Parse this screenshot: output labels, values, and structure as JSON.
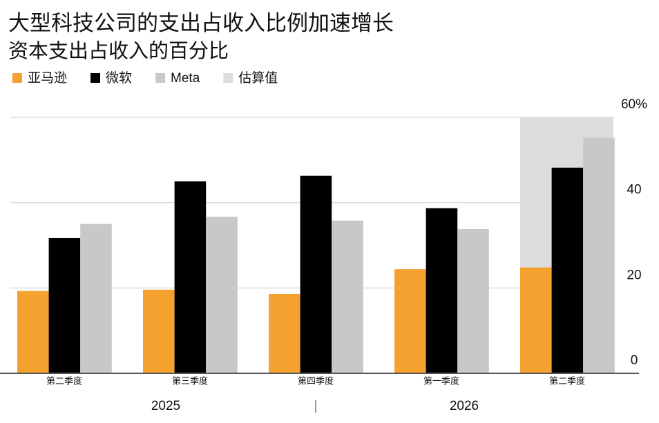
{
  "chart_data": {
    "type": "bar",
    "title": "大型科技公司的支出占收入比例加速增长",
    "subtitle": "资本支出占收入的百分比",
    "categories": [
      "第二季度",
      "第三季度",
      "第四季度",
      "第一季度",
      "第二季度"
    ],
    "x_groups": [
      "2025",
      "2026"
    ],
    "series": [
      {
        "name": "亚马逊",
        "color": "#f5a12f",
        "values": [
          19.3,
          19.6,
          18.6,
          24.4,
          24.8
        ]
      },
      {
        "name": "微软",
        "color": "#000000",
        "values": [
          31.7,
          45,
          46.3,
          38.7,
          48.2
        ]
      },
      {
        "name": "Meta",
        "color": "#c8c8c8",
        "values": [
          35,
          36.7,
          35.8,
          33.8,
          55.2
        ]
      }
    ],
    "estimate": {
      "name": "估算值",
      "color": "#dcdcdc",
      "categories": [
        "第二季度"
      ]
    },
    "ylim": [
      0,
      60
    ],
    "yticks": [
      0,
      20,
      40,
      {
        "value": 60,
        "label": "60%"
      }
    ],
    "grid": true
  }
}
